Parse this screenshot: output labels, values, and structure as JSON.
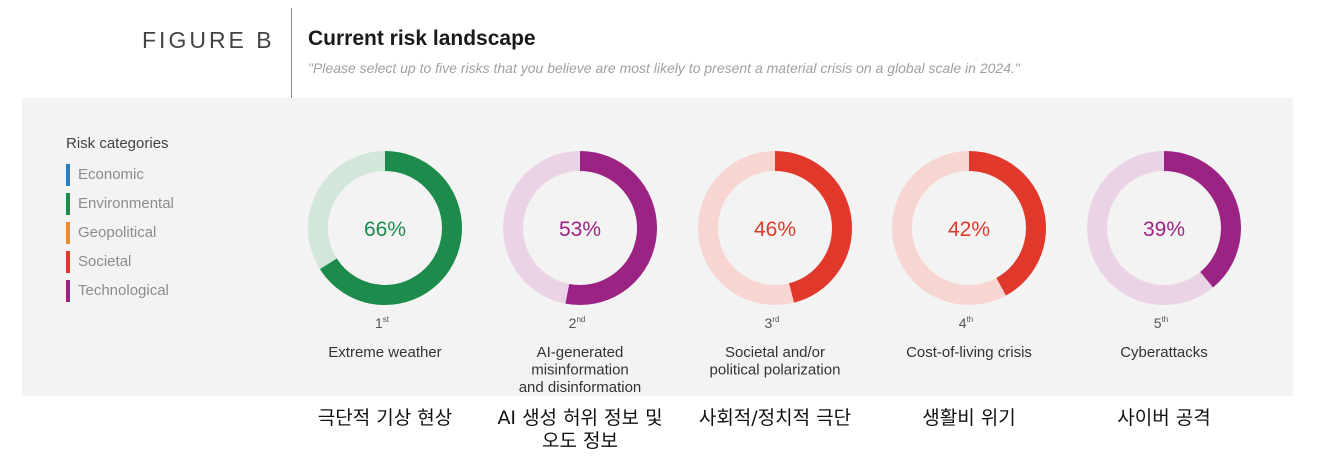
{
  "header": {
    "figure_label": "FIGURE B",
    "title": "Current risk landscape",
    "subtitle": "\"Please select up to five risks that you believe are most likely to present a material crisis on a global scale in 2024.\""
  },
  "legend": {
    "title": "Risk categories",
    "items": [
      {
        "label": "Economic",
        "color": "#2a7fc1"
      },
      {
        "label": "Environmental",
        "color": "#1d8b4b"
      },
      {
        "label": "Geopolitical",
        "color": "#e88a2d"
      },
      {
        "label": "Societal",
        "color": "#e0392b"
      },
      {
        "label": "Technological",
        "color": "#9b2383"
      }
    ]
  },
  "chart_data": {
    "type": "donut",
    "items": [
      {
        "rank": "1",
        "rank_suffix": "st",
        "label": "Extreme weather",
        "value": 66,
        "value_label": "66%",
        "category": "Environmental",
        "color": "#1d8b4b",
        "track_color": "#d3e6da",
        "korean": "극단적 기상 현상"
      },
      {
        "rank": "2",
        "rank_suffix": "nd",
        "label": "AI-generated\nmisinformation\nand disinformation",
        "value": 53,
        "value_label": "53%",
        "category": "Technological",
        "color": "#9b2383",
        "track_color": "#ead3e5",
        "korean": "AI 생성 허위 정보 및\n오도 정보"
      },
      {
        "rank": "3",
        "rank_suffix": "rd",
        "label": "Societal and/or\npolitical polarization",
        "value": 46,
        "value_label": "46%",
        "category": "Societal",
        "color": "#e0392b",
        "track_color": "#f7d6d2",
        "korean": "사회적/정치적 극단"
      },
      {
        "rank": "4",
        "rank_suffix": "th",
        "label": "Cost-of-living crisis",
        "value": 42,
        "value_label": "42%",
        "category": "Societal",
        "color": "#e0392b",
        "track_color": "#f7d6d2",
        "korean": "생활비 위기"
      },
      {
        "rank": "5",
        "rank_suffix": "th",
        "label": "Cyberattacks",
        "value": 39,
        "value_label": "39%",
        "category": "Technological",
        "color": "#9b2383",
        "track_color": "#ead3e5",
        "korean": "사이버 공격"
      }
    ]
  }
}
